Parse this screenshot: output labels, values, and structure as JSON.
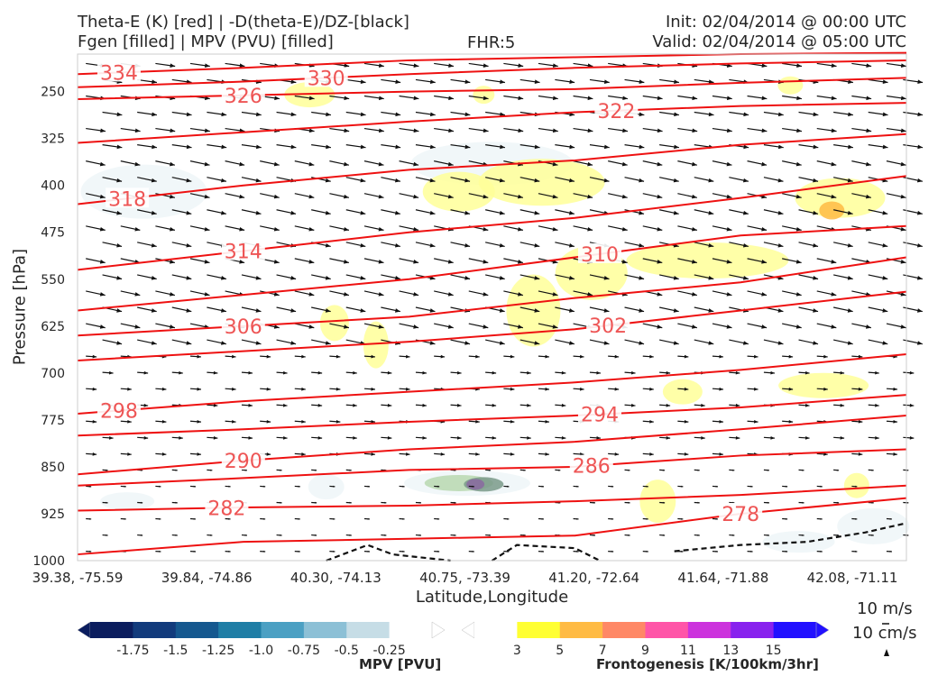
{
  "titles": {
    "line1_left": "Theta-E (K) [red] | -D(theta-E)/DZ-[black]",
    "line2_left": "Fgen [filled] | MPV (PVU) [filled]",
    "fhr": "FHR:5",
    "init": "Init: 02/04/2014 @ 00:00 UTC",
    "valid": "Valid: 02/04/2014 @ 05:00 UTC"
  },
  "chart_data": {
    "type": "cross-section",
    "xlabel": "Latitude,Longitude",
    "ylabel": "Pressure [hPa]",
    "x_ticks": [
      "39.38, -75.59",
      "39.84, -74.86",
      "40.30, -74.13",
      "40.75, -73.39",
      "41.20, -72.64",
      "41.64, -71.88",
      "42.08, -71.11"
    ],
    "y_ticks": [
      250,
      325,
      400,
      475,
      550,
      625,
      700,
      775,
      850,
      925,
      1000
    ],
    "ylim": [
      1000,
      190
    ],
    "y_inverted": true,
    "grid": false,
    "theta_e_contours": [
      {
        "label": "334",
        "points": [
          [
            0,
            222
          ],
          [
            0.2,
            212
          ],
          [
            0.4,
            200
          ],
          [
            0.6,
            195
          ],
          [
            0.8,
            190
          ],
          [
            1.0,
            188
          ]
        ]
      },
      {
        "label": "330",
        "points": [
          [
            0,
            243
          ],
          [
            0.2,
            234
          ],
          [
            0.4,
            222
          ],
          [
            0.6,
            212
          ],
          [
            0.8,
            205
          ],
          [
            1.0,
            200
          ]
        ]
      },
      {
        "label": "326",
        "points": [
          [
            0,
            262
          ],
          [
            0.2,
            256
          ],
          [
            0.4,
            250
          ],
          [
            0.6,
            246
          ],
          [
            0.8,
            236
          ],
          [
            1.0,
            228
          ]
        ]
      },
      {
        "label": "322",
        "points": [
          [
            0,
            332
          ],
          [
            0.2,
            315
          ],
          [
            0.4,
            298
          ],
          [
            0.6,
            283
          ],
          [
            0.8,
            273
          ],
          [
            1.0,
            268
          ]
        ]
      },
      {
        "label": "318",
        "points": [
          [
            0,
            430
          ],
          [
            0.2,
            400
          ],
          [
            0.4,
            375
          ],
          [
            0.6,
            360
          ],
          [
            0.8,
            335
          ],
          [
            1.0,
            318
          ]
        ]
      },
      {
        "label": "314",
        "points": [
          [
            0,
            535
          ],
          [
            0.2,
            505
          ],
          [
            0.4,
            475
          ],
          [
            0.6,
            452
          ],
          [
            0.8,
            420
          ],
          [
            1.0,
            385
          ]
        ]
      },
      {
        "label": "310",
        "points": [
          [
            0,
            600
          ],
          [
            0.2,
            575
          ],
          [
            0.4,
            550
          ],
          [
            0.6,
            515
          ],
          [
            0.8,
            480
          ],
          [
            1.0,
            465
          ]
        ]
      },
      {
        "label": "306",
        "points": [
          [
            0,
            640
          ],
          [
            0.2,
            625
          ],
          [
            0.4,
            610
          ],
          [
            0.6,
            580
          ],
          [
            0.8,
            555
          ],
          [
            1.0,
            515
          ]
        ]
      },
      {
        "label": "302",
        "points": [
          [
            0,
            680
          ],
          [
            0.2,
            665
          ],
          [
            0.4,
            650
          ],
          [
            0.6,
            630
          ],
          [
            0.8,
            600
          ],
          [
            1.0,
            570
          ]
        ]
      },
      {
        "label": "298",
        "points": [
          [
            0,
            765
          ],
          [
            0.2,
            745
          ],
          [
            0.4,
            730
          ],
          [
            0.6,
            715
          ],
          [
            0.8,
            695
          ],
          [
            1.0,
            670
          ]
        ]
      },
      {
        "label": "294",
        "points": [
          [
            0,
            800
          ],
          [
            0.2,
            790
          ],
          [
            0.4,
            778
          ],
          [
            0.6,
            768
          ],
          [
            0.8,
            755
          ],
          [
            1.0,
            735
          ]
        ]
      },
      {
        "label": "290",
        "points": [
          [
            0,
            862
          ],
          [
            0.2,
            840
          ],
          [
            0.4,
            822
          ],
          [
            0.6,
            810
          ],
          [
            0.8,
            790
          ],
          [
            1.0,
            768
          ]
        ]
      },
      {
        "label": "286",
        "points": [
          [
            0,
            880
          ],
          [
            0.2,
            868
          ],
          [
            0.4,
            855
          ],
          [
            0.6,
            850
          ],
          [
            0.8,
            832
          ],
          [
            1.0,
            822
          ]
        ]
      },
      {
        "label": "282",
        "points": [
          [
            0,
            920
          ],
          [
            0.2,
            915
          ],
          [
            0.4,
            912
          ],
          [
            0.6,
            905
          ],
          [
            0.8,
            895
          ],
          [
            1.0,
            880
          ]
        ]
      },
      {
        "label": "278",
        "points": [
          [
            0,
            990
          ],
          [
            0.2,
            970
          ],
          [
            0.4,
            965
          ],
          [
            0.6,
            960
          ],
          [
            0.8,
            925
          ],
          [
            1.0,
            900
          ]
        ]
      }
    ],
    "mpv_colorbar": {
      "label": "MPV [PVU]",
      "ticks": [
        "-1.75",
        "-1.5",
        "-1.25",
        "-1.0",
        "-0.75",
        "-0.5",
        "-0.25"
      ],
      "colors": [
        "#0b1d5e",
        "#123b7c",
        "#15588f",
        "#1f7ea6",
        "#4ba0c3",
        "#8cc0d6",
        "#c6dde6",
        "#ffffff"
      ]
    },
    "fgen_colorbar": {
      "label": "Frontogenesis [K/100km/3hr]",
      "ticks": [
        "3",
        "5",
        "7",
        "9",
        "11",
        "13",
        "15"
      ],
      "colors": [
        "#ffffff",
        "#ffff33",
        "#ffbb44",
        "#ff8866",
        "#ff55a8",
        "#cc33dd",
        "#8822ee",
        "#2211ff"
      ]
    },
    "vector_reference": {
      "horizontal": "10 m/s",
      "vertical": "10 cm/s"
    }
  }
}
